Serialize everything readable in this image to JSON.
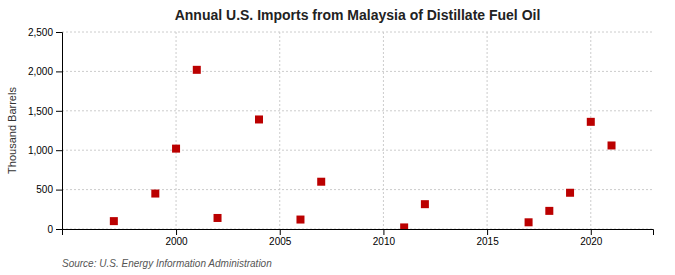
{
  "chart_data": {
    "type": "scatter",
    "title": "Annual U.S. Imports from Malaysia of Distillate Fuel Oil",
    "ylabel": "Thousand Barrels",
    "source": "Source: U.S. Energy Information Administration",
    "x": [
      1997,
      1999,
      2000,
      2001,
      2002,
      2004,
      2006,
      2007,
      2011,
      2012,
      2017,
      2018,
      2019,
      2020,
      2021
    ],
    "values": [
      100,
      450,
      1020,
      2020,
      140,
      1390,
      120,
      600,
      20,
      315,
      85,
      230,
      460,
      1360,
      1060
    ],
    "color": "#bb0000",
    "marker": "square",
    "xlim": [
      1994.5,
      2023
    ],
    "xticks": [
      2000,
      2005,
      2010,
      2015,
      2020
    ],
    "ylim": [
      0,
      2500
    ],
    "yticks": [
      0,
      500,
      {
        "value": 1000,
        "label": "1,000"
      },
      {
        "value": 1500,
        "label": "1,500"
      },
      {
        "value": 2000,
        "label": "2,000"
      },
      {
        "value": 2500,
        "label": "2,500"
      }
    ],
    "grid": true
  }
}
